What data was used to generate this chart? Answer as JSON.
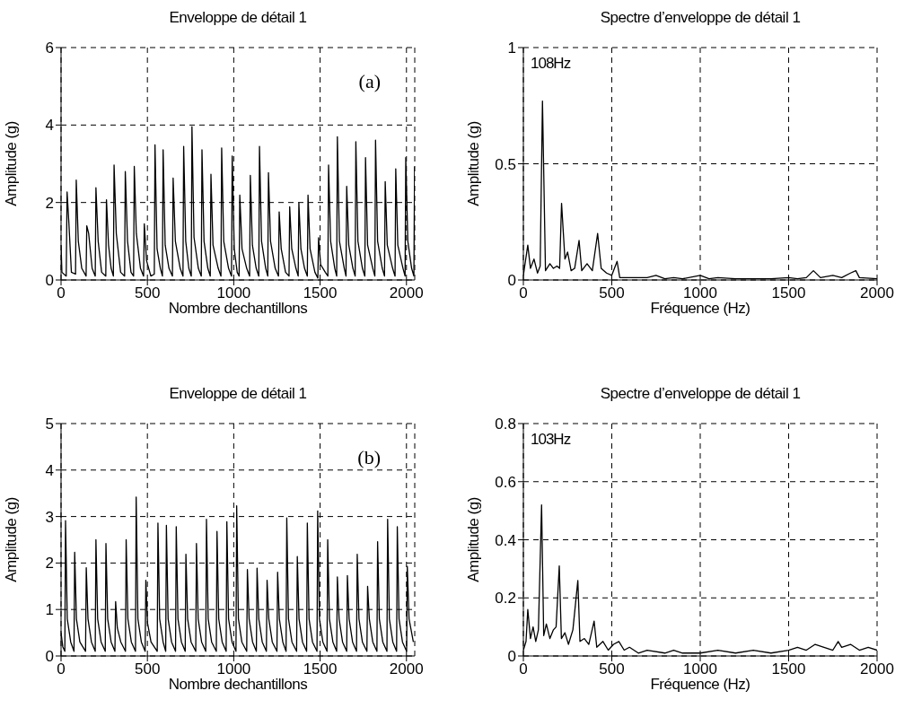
{
  "chart_data": [
    {
      "type": "line",
      "title": "Enveloppe de détail 1",
      "xlabel": "Nombre dechantillons",
      "ylabel": "Amplitude (g)",
      "color": "#000000",
      "xlim": [
        0,
        2048
      ],
      "xticks": [
        0,
        500,
        1000,
        1500,
        2000
      ],
      "ylim": [
        0,
        6
      ],
      "yticks": [
        0,
        2,
        4,
        6
      ],
      "grid": true,
      "annotations": [
        "(a)"
      ],
      "x": [
        0,
        5,
        30,
        35,
        45,
        60,
        84,
        88,
        100,
        120,
        145,
        149,
        160,
        180,
        198,
        202,
        215,
        235,
        259,
        263,
        275,
        290,
        303,
        307,
        320,
        345,
        368,
        372,
        385,
        405,
        420,
        424,
        436,
        460,
        478,
        482,
        495,
        520,
        540,
        544,
        556,
        575,
        587,
        591,
        603,
        625,
        645,
        649,
        662,
        690,
        706,
        710,
        722,
        740,
        754,
        758,
        770,
        795,
        812,
        816,
        828,
        850,
        864,
        868,
        880,
        910,
        926,
        930,
        942,
        970,
        987,
        991,
        1003,
        1020,
        1031,
        1035,
        1048,
        1075,
        1092,
        1096,
        1108,
        1130,
        1145,
        1149,
        1161,
        1185,
        1197,
        1201,
        1213,
        1240,
        1259,
        1263,
        1275,
        1300,
        1320,
        1324,
        1336,
        1360,
        1373,
        1377,
        1389,
        1410,
        1426,
        1430,
        1442,
        1470,
        1487,
        1491,
        1503,
        1530,
        1545,
        1549,
        1561,
        1585,
        1596,
        1600,
        1612,
        1640,
        1650,
        1654,
        1666,
        1690,
        1703,
        1707,
        1719,
        1745,
        1759,
        1763,
        1775,
        1805,
        1817,
        1821,
        1833,
        1860,
        1873,
        1877,
        1889,
        1920,
        1934,
        1938,
        1950,
        1980,
        1992,
        1996,
        2008,
        2030,
        2043,
        2047
      ],
      "values": [
        0.9,
        0.2,
        0.1,
        2.27,
        1.5,
        0.2,
        0.15,
        2.58,
        1.0,
        0.3,
        0.1,
        1.4,
        1.2,
        0.3,
        0.1,
        2.38,
        1.0,
        0.2,
        0.1,
        2.07,
        0.9,
        0.3,
        0.1,
        2.97,
        1.2,
        0.2,
        0.1,
        2.8,
        1.0,
        0.2,
        0.1,
        2.93,
        1.2,
        0.3,
        0.1,
        1.45,
        0.5,
        0.1,
        0.15,
        3.49,
        0.8,
        0.3,
        0.1,
        3.36,
        0.9,
        0.3,
        0.1,
        2.63,
        1.0,
        0.3,
        0.1,
        3.45,
        1.0,
        0.3,
        0.1,
        3.96,
        1.1,
        0.3,
        0.1,
        3.36,
        1.0,
        0.3,
        0.1,
        2.73,
        0.9,
        0.3,
        0.1,
        3.41,
        1.0,
        0.3,
        0.1,
        3.2,
        0.8,
        0.2,
        0.1,
        2.19,
        0.8,
        0.3,
        0.1,
        2.7,
        0.9,
        0.3,
        0.1,
        3.45,
        1.0,
        0.3,
        0.1,
        2.77,
        1.0,
        0.3,
        0.1,
        1.76,
        0.8,
        0.2,
        0.1,
        1.89,
        0.8,
        0.3,
        0.1,
        1.99,
        0.8,
        0.3,
        0.1,
        2.19,
        0.8,
        0.2,
        0.05,
        1.09,
        0.4,
        0.2,
        0.1,
        2.97,
        1.0,
        0.3,
        0.1,
        3.7,
        1.0,
        0.3,
        0.1,
        2.42,
        0.9,
        0.3,
        0.1,
        3.57,
        1.0,
        0.3,
        0.1,
        3.16,
        0.9,
        0.3,
        0.1,
        3.61,
        1.0,
        0.3,
        0.1,
        2.54,
        0.9,
        0.3,
        0.1,
        2.87,
        0.9,
        0.3,
        0.1,
        3.16,
        1.0,
        0.3,
        0.1,
        2.93
      ]
    },
    {
      "type": "line",
      "title": "Spectre d’enveloppe de détail 1",
      "xlabel": "Fréquence (Hz)",
      "ylabel": "Amplitude (g)",
      "color": "#000000",
      "xlim": [
        0,
        2000
      ],
      "xticks": [
        0,
        500,
        1000,
        1500,
        2000
      ],
      "ylim": [
        0,
        1
      ],
      "yticks": [
        0,
        0.5,
        1
      ],
      "grid": true,
      "annotations": [
        "108Hz"
      ],
      "x": [
        0,
        25,
        40,
        60,
        80,
        95,
        108,
        125,
        150,
        170,
        190,
        205,
        216,
        235,
        250,
        270,
        290,
        315,
        330,
        360,
        390,
        420,
        440,
        470,
        500,
        530,
        545,
        600,
        700,
        750,
        800,
        850,
        900,
        1000,
        1050,
        1100,
        1200,
        1300,
        1400,
        1500,
        1550,
        1600,
        1640,
        1680,
        1750,
        1800,
        1850,
        1880,
        1900,
        2000
      ],
      "values": [
        0.02,
        0.15,
        0.05,
        0.09,
        0.03,
        0.06,
        0.77,
        0.04,
        0.07,
        0.05,
        0.06,
        0.05,
        0.33,
        0.09,
        0.12,
        0.04,
        0.05,
        0.17,
        0.04,
        0.07,
        0.04,
        0.2,
        0.05,
        0.03,
        0.02,
        0.08,
        0.01,
        0.01,
        0.01,
        0.02,
        0.005,
        0.01,
        0.005,
        0.02,
        0.005,
        0.01,
        0.005,
        0.005,
        0.005,
        0.01,
        0.005,
        0.01,
        0.04,
        0.01,
        0.02,
        0.01,
        0.03,
        0.04,
        0.01,
        0.005
      ]
    },
    {
      "type": "line",
      "title": "Enveloppe de détail 1",
      "xlabel": "Nombre dechantillons",
      "ylabel": "Amplitude (g)",
      "color": "#000000",
      "xlim": [
        0,
        2048
      ],
      "xticks": [
        0,
        500,
        1000,
        1500,
        2000
      ],
      "ylim": [
        0,
        5
      ],
      "yticks": [
        0,
        1,
        2,
        3,
        4,
        5
      ],
      "grid": true,
      "annotations": [
        "(b)"
      ],
      "x": [
        0,
        10,
        22,
        26,
        36,
        56,
        75,
        79,
        89,
        109,
        142,
        146,
        156,
        176,
        198,
        202,
        212,
        232,
        256,
        260,
        270,
        290,
        312,
        316,
        326,
        346,
        373,
        377,
        387,
        407,
        431,
        435,
        445,
        465,
        487,
        491,
        501,
        521,
        557,
        561,
        571,
        591,
        606,
        610,
        620,
        640,
        663,
        667,
        677,
        697,
        719,
        723,
        733,
        753,
        780,
        784,
        794,
        814,
        838,
        842,
        852,
        872,
        899,
        903,
        913,
        933,
        956,
        960,
        970,
        990,
        1013,
        1017,
        1027,
        1047,
        1075,
        1079,
        1089,
        1109,
        1131,
        1135,
        1145,
        1165,
        1189,
        1193,
        1203,
        1223,
        1250,
        1254,
        1264,
        1284,
        1303,
        1307,
        1317,
        1337,
        1364,
        1368,
        1378,
        1398,
        1422,
        1426,
        1436,
        1456,
        1482,
        1486,
        1496,
        1516,
        1540,
        1544,
        1554,
        1574,
        1596,
        1600,
        1610,
        1630,
        1654,
        1658,
        1668,
        1688,
        1711,
        1715,
        1725,
        1745,
        1771,
        1775,
        1785,
        1805,
        1829,
        1833,
        1843,
        1863,
        1887,
        1891,
        1901,
        1921,
        1943,
        1947,
        1957,
        1977,
        2001,
        2005,
        2015,
        2040
      ],
      "values": [
        0.5,
        0.2,
        0.1,
        2.91,
        0.8,
        0.3,
        0.1,
        2.23,
        0.8,
        0.3,
        0.1,
        1.9,
        0.8,
        0.3,
        0.1,
        2.5,
        0.8,
        0.3,
        0.1,
        2.42,
        0.8,
        0.3,
        0.1,
        1.17,
        0.6,
        0.3,
        0.1,
        2.5,
        0.8,
        0.3,
        0.1,
        3.42,
        0.8,
        0.3,
        0.1,
        1.63,
        0.7,
        0.3,
        0.1,
        2.86,
        0.8,
        0.3,
        0.1,
        2.81,
        0.8,
        0.3,
        0.1,
        2.78,
        0.8,
        0.3,
        0.1,
        2.19,
        0.8,
        0.3,
        0.1,
        2.42,
        0.8,
        0.3,
        0.1,
        2.94,
        0.8,
        0.3,
        0.1,
        2.68,
        0.8,
        0.3,
        0.1,
        2.89,
        0.8,
        0.3,
        0.1,
        3.23,
        0.8,
        0.3,
        0.1,
        1.86,
        0.8,
        0.3,
        0.1,
        1.89,
        0.8,
        0.3,
        0.1,
        1.63,
        0.8,
        0.3,
        0.1,
        1.8,
        0.8,
        0.3,
        0.1,
        2.97,
        0.8,
        0.3,
        0.1,
        2.14,
        0.8,
        0.3,
        0.1,
        2.86,
        0.8,
        0.3,
        0.1,
        3.12,
        0.8,
        0.3,
        0.1,
        2.5,
        0.8,
        0.3,
        0.1,
        1.7,
        0.8,
        0.3,
        0.1,
        1.73,
        0.8,
        0.3,
        0.1,
        2.19,
        0.8,
        0.3,
        0.1,
        1.5,
        0.8,
        0.3,
        0.1,
        2.46,
        0.8,
        0.3,
        0.1,
        2.94,
        0.8,
        0.3,
        0.1,
        2.78,
        0.8,
        0.3,
        0.1,
        1.93,
        0.8,
        0.3
      ]
    },
    {
      "type": "line",
      "title": "Spectre d’enveloppe de détail 1",
      "xlabel": "Fréquence (Hz)",
      "ylabel": "Amplitude (g)",
      "color": "#000000",
      "xlim": [
        0,
        2000
      ],
      "xticks": [
        0,
        500,
        1000,
        1500,
        2000
      ],
      "ylim": [
        0,
        0.8
      ],
      "yticks": [
        0,
        0.2,
        0.4,
        0.6,
        0.8
      ],
      "grid": true,
      "annotations": [
        "103Hz"
      ],
      "x": [
        0,
        15,
        25,
        40,
        55,
        70,
        85,
        103,
        115,
        130,
        150,
        170,
        185,
        203,
        215,
        235,
        255,
        280,
        308,
        320,
        345,
        370,
        400,
        415,
        450,
        480,
        510,
        540,
        570,
        600,
        650,
        700,
        800,
        850,
        900,
        1000,
        1100,
        1200,
        1300,
        1400,
        1500,
        1550,
        1600,
        1650,
        1700,
        1750,
        1780,
        1800,
        1850,
        1900,
        1950,
        2000
      ],
      "values": [
        0.02,
        0.05,
        0.16,
        0.06,
        0.1,
        0.05,
        0.09,
        0.52,
        0.07,
        0.11,
        0.06,
        0.09,
        0.1,
        0.31,
        0.06,
        0.08,
        0.04,
        0.09,
        0.26,
        0.05,
        0.06,
        0.04,
        0.12,
        0.03,
        0.05,
        0.02,
        0.04,
        0.05,
        0.02,
        0.03,
        0.01,
        0.02,
        0.01,
        0.02,
        0.01,
        0.01,
        0.02,
        0.01,
        0.02,
        0.01,
        0.02,
        0.03,
        0.02,
        0.04,
        0.03,
        0.02,
        0.05,
        0.03,
        0.04,
        0.02,
        0.03,
        0.02
      ]
    }
  ]
}
